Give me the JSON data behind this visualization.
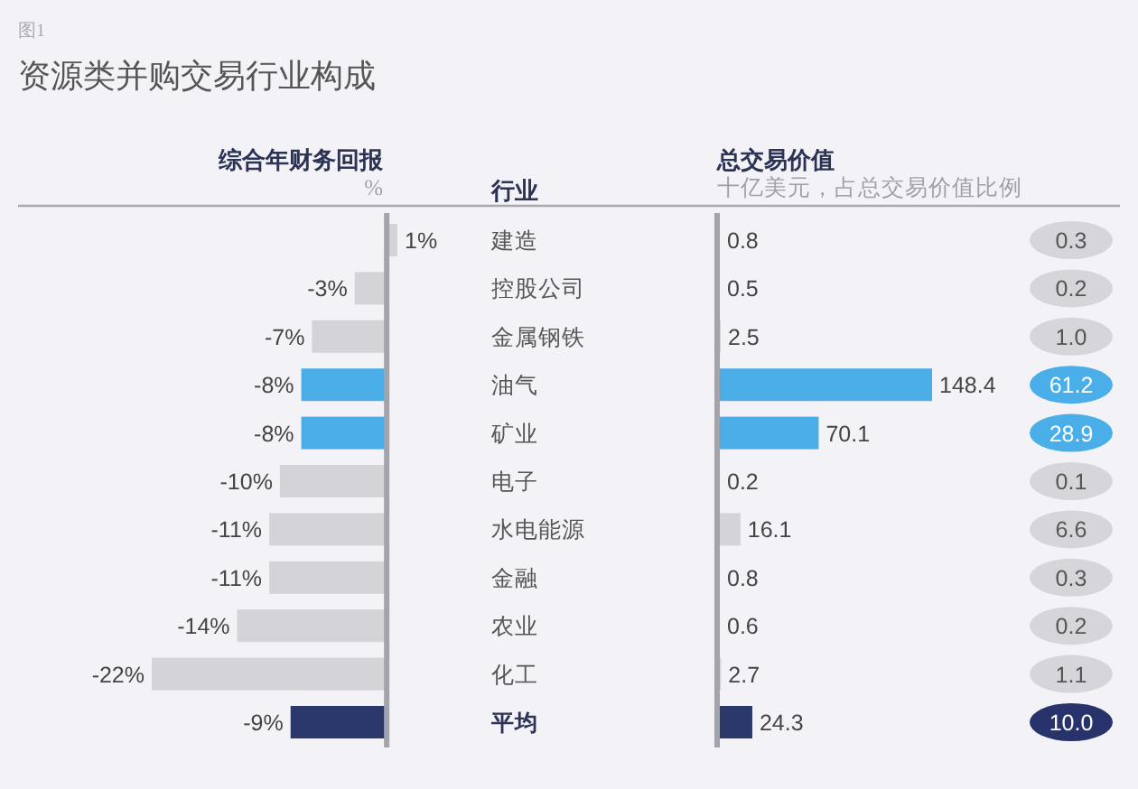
{
  "chart_data": [
    {
      "type": "bar",
      "orientation": "horizontal",
      "title": "资源类并购交易行业构成",
      "xlabel": "综合年财务回报",
      "ylabel": "行业",
      "annotations": [
        "%",
        "图1"
      ],
      "categories": [
        "建造",
        "控股公司",
        "金属钢铁",
        "油气",
        "矿业",
        "电子",
        "水电能源",
        "金融",
        "农业",
        "化工",
        "平均"
      ],
      "values": [
        1,
        -3,
        -7,
        -8,
        -8,
        -10,
        -11,
        -11,
        -14,
        -22,
        -9
      ],
      "value_labels": [
        "1%",
        "-3%",
        "-7%",
        "-8%",
        "-8%",
        "-10%",
        "-11%",
        "-11%",
        "-14%",
        "-22%",
        "-9%"
      ],
      "colors": [
        "#d3d3d8",
        "#d3d3d8",
        "#d3d3d8",
        "#4aade8",
        "#4aade8",
        "#d3d3d8",
        "#d3d3d8",
        "#d3d3d8",
        "#d3d3d8",
        "#d3d3d8",
        "#2b386b"
      ]
    },
    {
      "type": "bar",
      "orientation": "horizontal",
      "xlabel": "总交易价值",
      "annotations": [
        "十亿美元，占总交易价值比例"
      ],
      "values": [
        0.8,
        0.5,
        2.5,
        148.4,
        70.1,
        0.2,
        16.1,
        0.8,
        0.6,
        2.7,
        24.3
      ],
      "data_labels": true,
      "colors": [
        "#d3d3d8",
        "#d3d3d8",
        "#d3d3d8",
        "#4aade8",
        "#4aade8",
        "#d3d3d8",
        "#d3d3d8",
        "#d3d3d8",
        "#d3d3d8",
        "#d3d3d8",
        "#2b386b"
      ]
    },
    {
      "type": "other",
      "values": [
        0.3,
        0.2,
        1.0,
        61.2,
        28.9,
        0.1,
        6.6,
        0.3,
        0.2,
        1.1,
        10.0
      ],
      "value_labels": [
        "0.3",
        "0.2",
        "1.0",
        "61.2",
        "28.9",
        "0.1",
        "6.6",
        "0.3",
        "0.2",
        "1.1",
        "10.0"
      ],
      "colors": [
        "#d6d6da",
        "#d6d6da",
        "#d6d6da",
        "#4aaee9",
        "#4aaee9",
        "#d6d6da",
        "#d6d6da",
        "#d6d6da",
        "#d6d6da",
        "#d6d6da",
        "#27336a"
      ]
    }
  ]
}
